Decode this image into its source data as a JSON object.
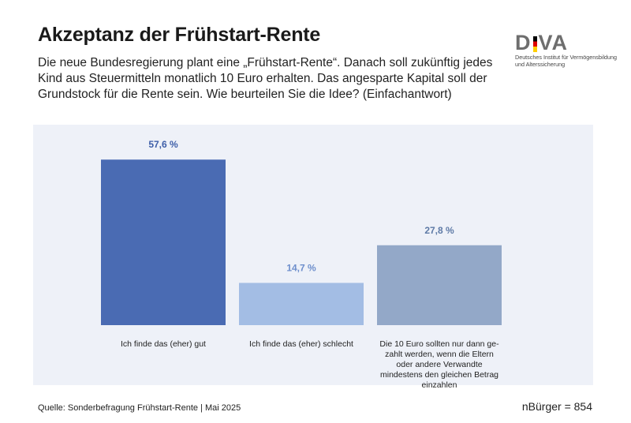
{
  "header": {
    "title": "Akzeptanz der Frühstart-Rente",
    "subtitle": "Die neue Bundesregierung plant eine „Frühstart-Rente“. Danach soll zukünftig jedes Kind aus Steuermitteln monatlich 10 Euro erhalten. Das angesparte Kapital soll der Grundstock für die Rente sein. Wie beurteilen Sie die Idee? (Einfachantwort)"
  },
  "logo": {
    "text_before": "D",
    "text_after": "VA",
    "subtext": "Deutsches Institut für Vermögensbildung und Alterssicherung"
  },
  "chart_data": {
    "type": "bar",
    "categories": [
      "Ich finde das (eher) gut",
      "Ich finde das (eher) schlecht",
      "Die 10 Euro sollten nur dann ge-zahlt werden, wenn die Eltern oder andere Verwandte mindestens den gleichen Betrag einzahlen"
    ],
    "values": [
      57.6,
      14.7,
      27.8
    ],
    "value_labels": [
      "57,6 %",
      "14,7 %",
      "27,8 %"
    ],
    "bar_colors": [
      "#4a6bb3",
      "#a3bde4",
      "#93a8c8"
    ],
    "label_colors": [
      "#3d5ea8",
      "#6e8fcc",
      "#5e7aa6"
    ],
    "ylim": [
      0,
      60
    ],
    "grid": false,
    "legend": "none"
  },
  "footer": {
    "source": "Quelle: Sonderbefragung Frühstart-Rente | Mai 2025",
    "sample": "nBürger = 854"
  }
}
